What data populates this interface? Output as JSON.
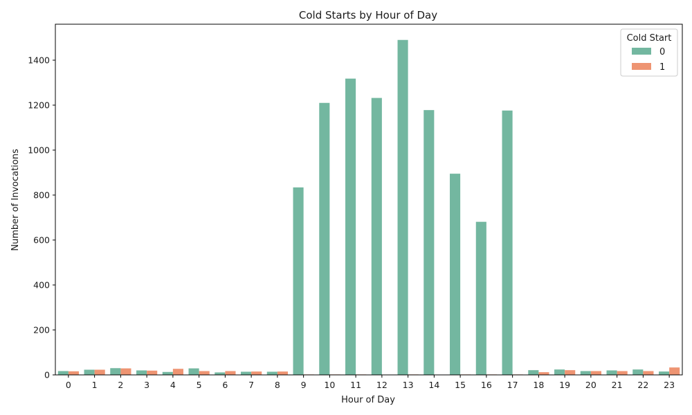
{
  "chart_data": {
    "type": "bar",
    "title": "Cold Starts by Hour of Day",
    "xlabel": "Hour of Day",
    "ylabel": "Number of Invocations",
    "categories": [
      "0",
      "1",
      "2",
      "3",
      "4",
      "5",
      "6",
      "7",
      "8",
      "9",
      "10",
      "11",
      "12",
      "13",
      "14",
      "15",
      "16",
      "17",
      "18",
      "19",
      "20",
      "21",
      "22",
      "23"
    ],
    "series": [
      {
        "name": "0",
        "color": "#73b7a0",
        "values": [
          17,
          23,
          30,
          20,
          13,
          29,
          11,
          14,
          14,
          834,
          1210,
          1318,
          1232,
          1490,
          1178,
          895,
          681,
          1176,
          21,
          24,
          17,
          20,
          24,
          15
        ]
      },
      {
        "name": "1",
        "color": "#ee9472",
        "values": [
          16,
          23,
          29,
          19,
          27,
          17,
          17,
          15,
          15,
          2,
          2,
          2,
          0,
          2,
          0,
          2,
          2,
          2,
          12,
          21,
          17,
          17,
          17,
          33
        ]
      }
    ],
    "ylim": [
      0,
      1560
    ],
    "yticks": [
      0,
      200,
      400,
      600,
      800,
      1000,
      1200,
      1400
    ],
    "legend": {
      "title": "Cold Start",
      "placement": "top-right"
    },
    "grid": false
  }
}
